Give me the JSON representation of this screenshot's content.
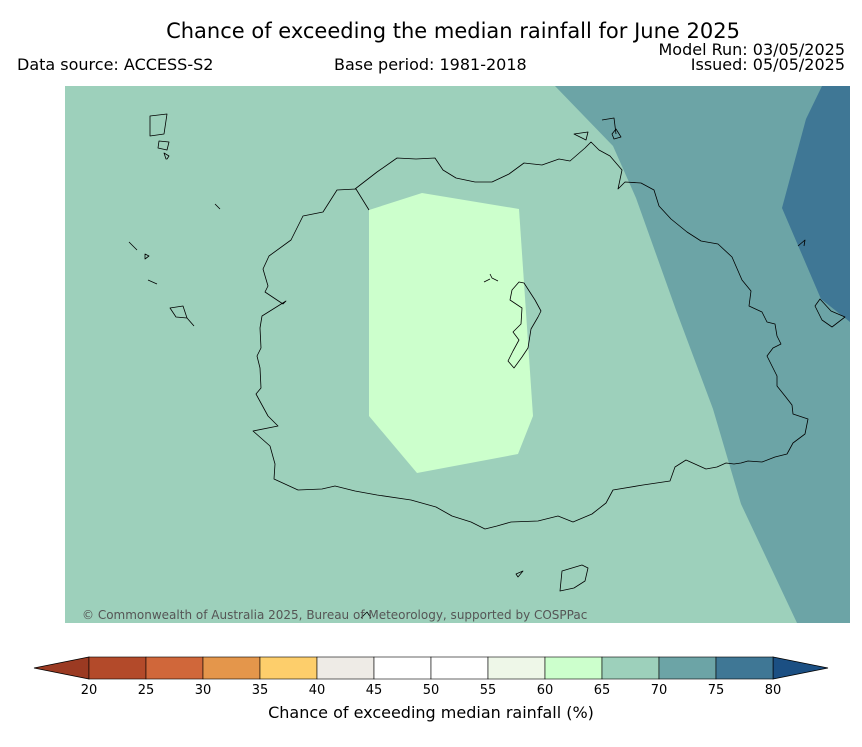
{
  "header": {
    "title": "Chance of exceeding the median rainfall for June 2025",
    "data_source": "Data source: ACCESS-S2",
    "base_period": "Base period: 1981-2018",
    "model_run": "Model Run: 03/05/2025",
    "issued": "Issued: 05/05/2025"
  },
  "map": {
    "copyright": "© Commonwealth of Australia 2025, Bureau of Meteorology, supported by COSPPac",
    "zone_colors": {
      "60-65": "#ccffcc",
      "65-70": "#9dd0bb",
      "70-75": "#6ca4a6",
      "75-80": "#3f7795"
    }
  },
  "colorbar": {
    "label": "Chance of exceeding median rainfall (%)",
    "ticks": [
      "20",
      "25",
      "30",
      "35",
      "40",
      "45",
      "50",
      "55",
      "60",
      "65",
      "70",
      "75",
      "80"
    ],
    "colors": [
      "#b34a2a",
      "#d0673a",
      "#e4964b",
      "#fdce6b",
      "#eeebe6",
      "#ffffff",
      "#ffffff",
      "#eef7e8",
      "#ccffcc",
      "#9dd0bb",
      "#6ca4a6",
      "#3f7795"
    ],
    "under_color": "#9b3a22",
    "over_color": "#1b4f83"
  }
}
